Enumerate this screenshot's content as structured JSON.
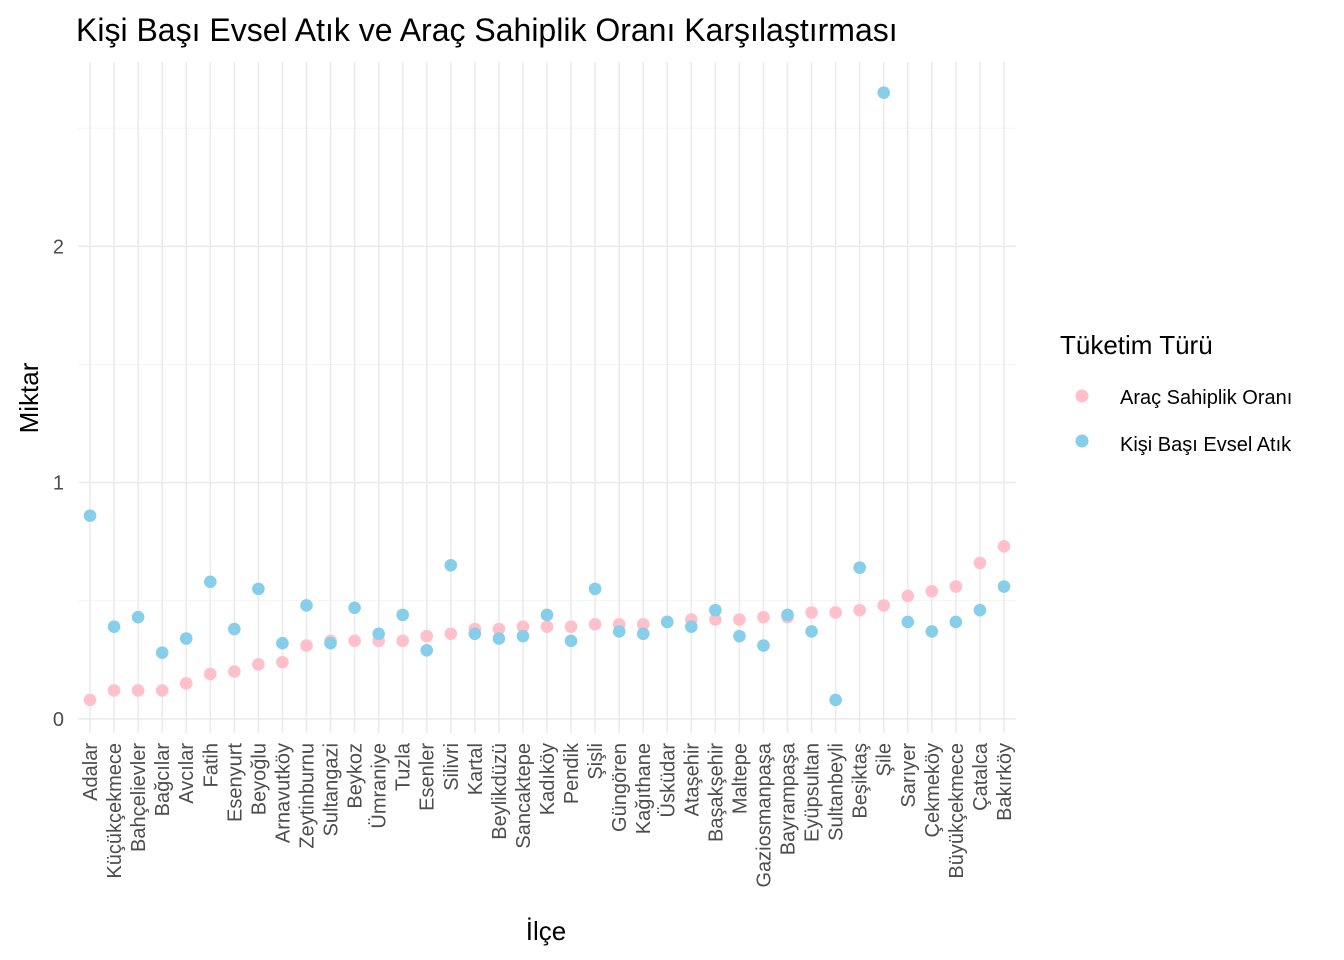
{
  "chart_data": {
    "type": "scatter",
    "title": "Kişi Başı Evsel Atık ve Araç Sahiplik Oranı Karşılaştırması",
    "xlabel": "İlçe",
    "ylabel": "Miktar",
    "categories": [
      "Adalar",
      "Küçükçekmece",
      "Bahçelievler",
      "Bağcılar",
      "Avcılar",
      "Fatih",
      "Esenyurt",
      "Beyoğlu",
      "Arnavutköy",
      "Zeytinburnu",
      "Sultangazi",
      "Beykoz",
      "Ümraniye",
      "Tuzla",
      "Esenler",
      "Silivri",
      "Kartal",
      "Beylikdüzü",
      "Sancaktepe",
      "Kadıköy",
      "Pendik",
      "Şişli",
      "Güngören",
      "Kağıthane",
      "Üsküdar",
      "Ataşehir",
      "Başakşehir",
      "Maltepe",
      "Gaziosmanpaşa",
      "Bayrampaşa",
      "Eyüpsultan",
      "Sultanbeyli",
      "Beşiktaş",
      "Şile",
      "Sarıyer",
      "Çekmeköy",
      "Büyükçekmece",
      "Çatalca",
      "Bakırköy"
    ],
    "ylim": [
      -0.06,
      2.78
    ],
    "yticks": [
      0,
      1,
      2
    ],
    "yticklabels": [
      "0",
      "1",
      "2"
    ],
    "grid": true,
    "legend": {
      "title": "Tüketim Türü",
      "placement": "right"
    },
    "series": [
      {
        "name": "Araç Sahiplik Oranı",
        "color": "#FFC0CB",
        "values": [
          0.08,
          0.12,
          0.12,
          0.12,
          0.15,
          0.19,
          0.2,
          0.23,
          0.24,
          0.31,
          0.33,
          0.33,
          0.33,
          0.33,
          0.35,
          0.36,
          0.38,
          0.38,
          0.39,
          0.39,
          0.39,
          0.4,
          0.4,
          0.4,
          0.41,
          0.42,
          0.42,
          0.42,
          0.43,
          0.43,
          0.45,
          0.45,
          0.46,
          0.48,
          0.52,
          0.54,
          0.56,
          0.66,
          0.73
        ]
      },
      {
        "name": "Kişi Başı Evsel Atık",
        "color": "#87CEEB",
        "values": [
          0.86,
          0.39,
          0.43,
          0.28,
          0.34,
          0.58,
          0.38,
          0.55,
          0.32,
          0.48,
          0.32,
          0.47,
          0.36,
          0.44,
          0.29,
          0.65,
          0.36,
          0.34,
          0.35,
          0.44,
          0.33,
          0.55,
          0.37,
          0.36,
          0.41,
          0.39,
          0.46,
          0.35,
          0.31,
          0.44,
          0.37,
          0.08,
          0.64,
          2.65,
          0.41,
          0.37,
          0.41,
          0.46,
          0.56
        ]
      }
    ]
  }
}
